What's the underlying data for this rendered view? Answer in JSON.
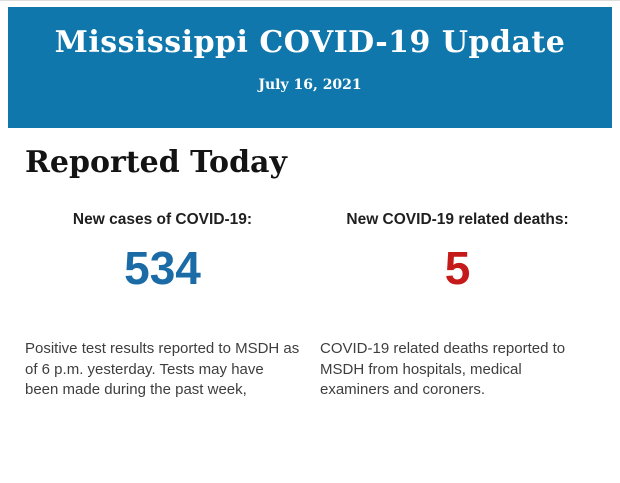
{
  "header": {
    "title": "Mississippi COVID-19 Update",
    "date": "July 16, 2021",
    "background_color": "#0f77ab",
    "text_color": "#ffffff"
  },
  "section": {
    "heading": "Reported Today"
  },
  "stats": {
    "cases": {
      "label": "New cases of COVID-19:",
      "value": "534",
      "value_color": "#1b6ca6",
      "description": "Positive test results reported to MSDH as of 6 p.m. yesterday. Tests may have been made during the past week,"
    },
    "deaths": {
      "label": "New COVID-19 related deaths:",
      "value": "5",
      "value_color": "#c41a1a",
      "description": "COVID-19 related deaths reported to MSDH from hospitals, medical examiners and coroners."
    }
  }
}
